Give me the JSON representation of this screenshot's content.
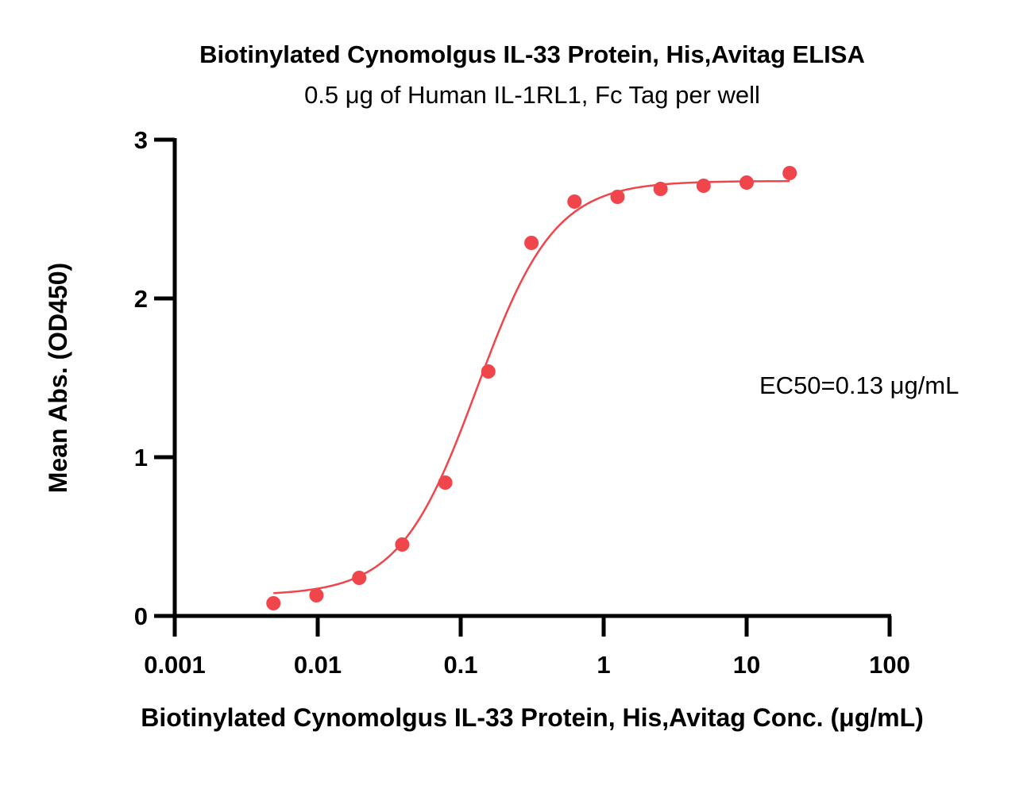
{
  "chart_data": {
    "type": "scatter",
    "title": "Biotinylated Cynomolgus IL-33 Protein, His,Avitag ELISA",
    "subtitle": "0.5 μg of Human IL-1RL1, Fc Tag per well",
    "xlabel": "Biotinylated Cynomolgus IL-33 Protein, His,Avitag Conc. (μg/mL)",
    "ylabel": "Mean Abs. (OD450)",
    "xscale": "log",
    "xlim": [
      0.001,
      100
    ],
    "ylim": [
      0,
      3
    ],
    "x_ticks": [
      0.001,
      0.01,
      0.1,
      1,
      10,
      100
    ],
    "x_tick_labels": [
      "0.001",
      "0.01",
      "0.1",
      "1",
      "10",
      "100"
    ],
    "y_ticks": [
      0,
      1,
      2,
      3
    ],
    "y_tick_labels": [
      "0",
      "1",
      "2",
      "3"
    ],
    "grid": false,
    "legend": "none",
    "annotation": "EC50=0.13 μg/mL",
    "color": "#f0454b",
    "series": [
      {
        "x": [
          0.0049,
          0.0098,
          0.0195,
          0.039,
          0.078,
          0.156,
          0.3125,
          0.625,
          1.25,
          2.5,
          5,
          10,
          20
        ],
        "y": [
          0.08,
          0.13,
          0.24,
          0.45,
          0.84,
          1.54,
          2.35,
          2.61,
          2.64,
          2.69,
          2.71,
          2.73,
          2.79
        ]
      }
    ],
    "fit_curve": {
      "bottom": 0.13,
      "top": 2.74,
      "ec50": 0.13,
      "hill": 1.6,
      "x_range": [
        0.0049,
        20
      ]
    }
  }
}
